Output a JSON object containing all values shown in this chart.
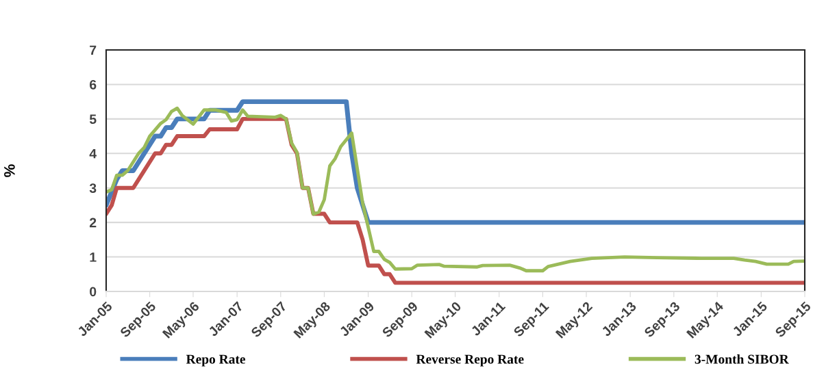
{
  "chart_data": {
    "type": "line",
    "ylabel": "%",
    "xlim": [
      "2005-01",
      "2015-09"
    ],
    "ylim": [
      0,
      7
    ],
    "xticks": [
      {
        "value": "2005-01",
        "label": "Jan-05"
      },
      {
        "value": "2005-09",
        "label": "Sep-05"
      },
      {
        "value": "2006-05",
        "label": "May-06"
      },
      {
        "value": "2007-01",
        "label": "Jan-07"
      },
      {
        "value": "2007-09",
        "label": "Sep-07"
      },
      {
        "value": "2008-05",
        "label": "May-08"
      },
      {
        "value": "2009-01",
        "label": "Jan-09"
      },
      {
        "value": "2009-09",
        "label": "Sep-09"
      },
      {
        "value": "2010-05",
        "label": "May-10"
      },
      {
        "value": "2011-01",
        "label": "Jan-11"
      },
      {
        "value": "2011-09",
        "label": "Sep-11"
      },
      {
        "value": "2012-05",
        "label": "May-12"
      },
      {
        "value": "2013-01",
        "label": "Jan-13"
      },
      {
        "value": "2013-09",
        "label": "Sep-13"
      },
      {
        "value": "2014-05",
        "label": "May-14"
      },
      {
        "value": "2015-01",
        "label": "Jan-15"
      },
      {
        "value": "2015-09",
        "label": "Sep-15"
      }
    ],
    "yticks": [
      0,
      1,
      2,
      3,
      4,
      5,
      6,
      7
    ],
    "grid": "y",
    "legend": "bottom",
    "marker": "none",
    "line_style": "solid",
    "series": [
      {
        "name": "Repo Rate",
        "color": "#4a7ebb",
        "x": [
          "2005-01",
          "2005-03",
          "2005-04",
          "2005-06",
          "2005-10",
          "2005-11",
          "2005-12",
          "2006-01",
          "2006-02",
          "2006-07",
          "2006-08",
          "2007-01",
          "2007-02",
          "2008-09",
          "2008-10",
          "2008-11",
          "2009-01",
          "2015-09"
        ],
        "values": [
          2.5,
          3.25,
          3.5,
          3.5,
          4.5,
          4.5,
          4.75,
          4.75,
          5.0,
          5.0,
          5.25,
          5.25,
          5.5,
          5.5,
          4.0,
          3.0,
          2.0,
          2.0
        ]
      },
      {
        "name": "Reverse Repo Rate",
        "color": "#c0504d",
        "x": [
          "2005-01",
          "2005-02",
          "2005-03",
          "2005-06",
          "2005-10",
          "2005-11",
          "2005-12",
          "2006-01",
          "2006-02",
          "2006-07",
          "2006-08",
          "2007-01",
          "2007-02",
          "2007-10",
          "2007-11",
          "2007-12",
          "2008-01",
          "2008-02",
          "2008-03",
          "2008-05",
          "2008-06",
          "2008-11",
          "2008-12",
          "2009-01",
          "2009-03",
          "2009-04",
          "2009-05",
          "2009-06",
          "2015-09"
        ],
        "values": [
          2.25,
          2.5,
          3.0,
          3.0,
          4.0,
          4.0,
          4.25,
          4.25,
          4.5,
          4.5,
          4.7,
          4.7,
          5.0,
          5.0,
          4.25,
          4.0,
          3.0,
          3.0,
          2.25,
          2.25,
          2.0,
          2.0,
          1.5,
          0.75,
          0.75,
          0.5,
          0.5,
          0.25,
          0.25
        ]
      },
      {
        "name": "3-Month SIBOR",
        "color": "#9bbb59",
        "x": [
          "2005-01",
          "2005-02",
          "2005-03",
          "2005-04",
          "2005-05",
          "2005-07",
          "2005-08",
          "2005-09",
          "2005-11",
          "2005-12",
          "2006-01",
          "2006-02",
          "2006-03",
          "2006-05",
          "2006-07",
          "2006-09",
          "2006-11",
          "2006-12",
          "2007-01",
          "2007-02",
          "2007-03",
          "2007-08",
          "2007-09",
          "2007-10",
          "2007-11",
          "2007-12",
          "2008-01",
          "2008-02",
          "2008-03",
          "2008-04",
          "2008-05",
          "2008-06",
          "2008-07",
          "2008-08",
          "2008-10",
          "2008-12",
          "2009-02",
          "2009-03",
          "2009-04",
          "2009-05",
          "2009-06",
          "2009-09",
          "2009-10",
          "2010-02",
          "2010-03",
          "2010-09",
          "2010-10",
          "2011-03",
          "2011-05",
          "2011-06",
          "2011-09",
          "2011-10",
          "2012-02",
          "2012-06",
          "2012-12",
          "2013-06",
          "2014-02",
          "2014-08",
          "2014-10",
          "2014-12",
          "2015-02",
          "2015-06",
          "2015-07",
          "2015-09"
        ],
        "values": [
          2.88,
          2.95,
          3.37,
          3.37,
          3.5,
          4.0,
          4.17,
          4.5,
          4.87,
          4.98,
          5.22,
          5.31,
          5.1,
          4.85,
          5.26,
          5.26,
          5.19,
          4.94,
          4.98,
          5.26,
          5.08,
          5.05,
          5.1,
          5.0,
          4.3,
          4.03,
          3.0,
          3.0,
          2.24,
          2.3,
          2.66,
          3.64,
          3.85,
          4.2,
          4.59,
          2.56,
          1.16,
          1.16,
          0.93,
          0.84,
          0.65,
          0.66,
          0.76,
          0.78,
          0.73,
          0.71,
          0.75,
          0.76,
          0.67,
          0.6,
          0.6,
          0.72,
          0.87,
          0.96,
          1.0,
          0.98,
          0.96,
          0.96,
          0.91,
          0.87,
          0.79,
          0.79,
          0.87,
          0.88
        ]
      }
    ]
  }
}
